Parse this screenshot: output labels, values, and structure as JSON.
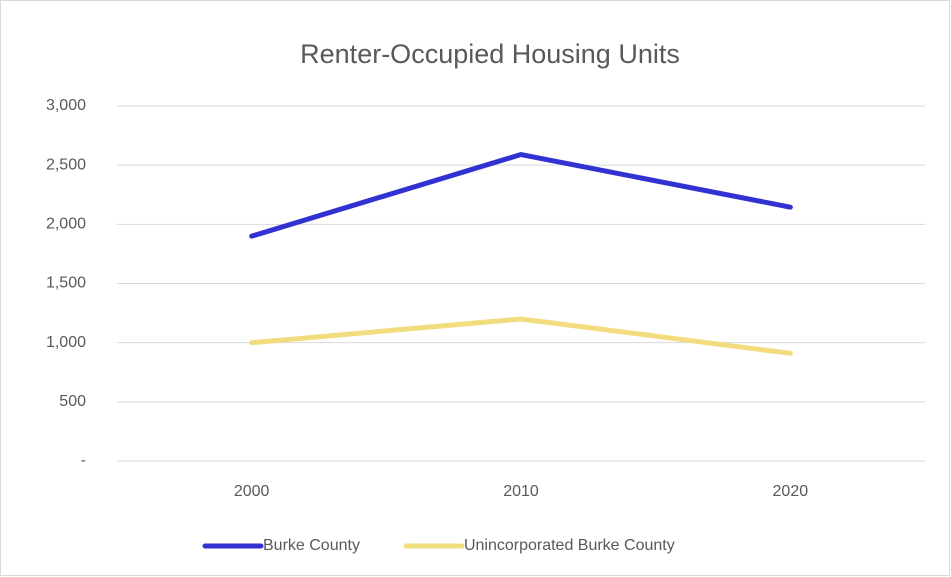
{
  "chart_data": {
    "type": "line",
    "title": "Renter-Occupied Housing Units",
    "categories": [
      "2000",
      "2010",
      "2020"
    ],
    "series": [
      {
        "name": "Burke County",
        "color": "#3232d2",
        "values": [
          1900,
          2590,
          2145
        ]
      },
      {
        "name": "Unincorporated Burke County",
        "color": "#f2dc7e",
        "values": [
          1000,
          1200,
          910
        ]
      }
    ],
    "ylim": [
      0,
      3000
    ],
    "yticks": [
      {
        "value": 0,
        "label": "-"
      },
      500,
      {
        "value": 1000,
        "label": "1,000"
      },
      {
        "value": 1500,
        "label": "1,500"
      },
      {
        "value": 2000,
        "label": "2,000"
      },
      {
        "value": 2500,
        "label": "2,500"
      },
      {
        "value": 3000,
        "label": "3,000"
      }
    ],
    "grid": true,
    "legend": "bottom"
  }
}
